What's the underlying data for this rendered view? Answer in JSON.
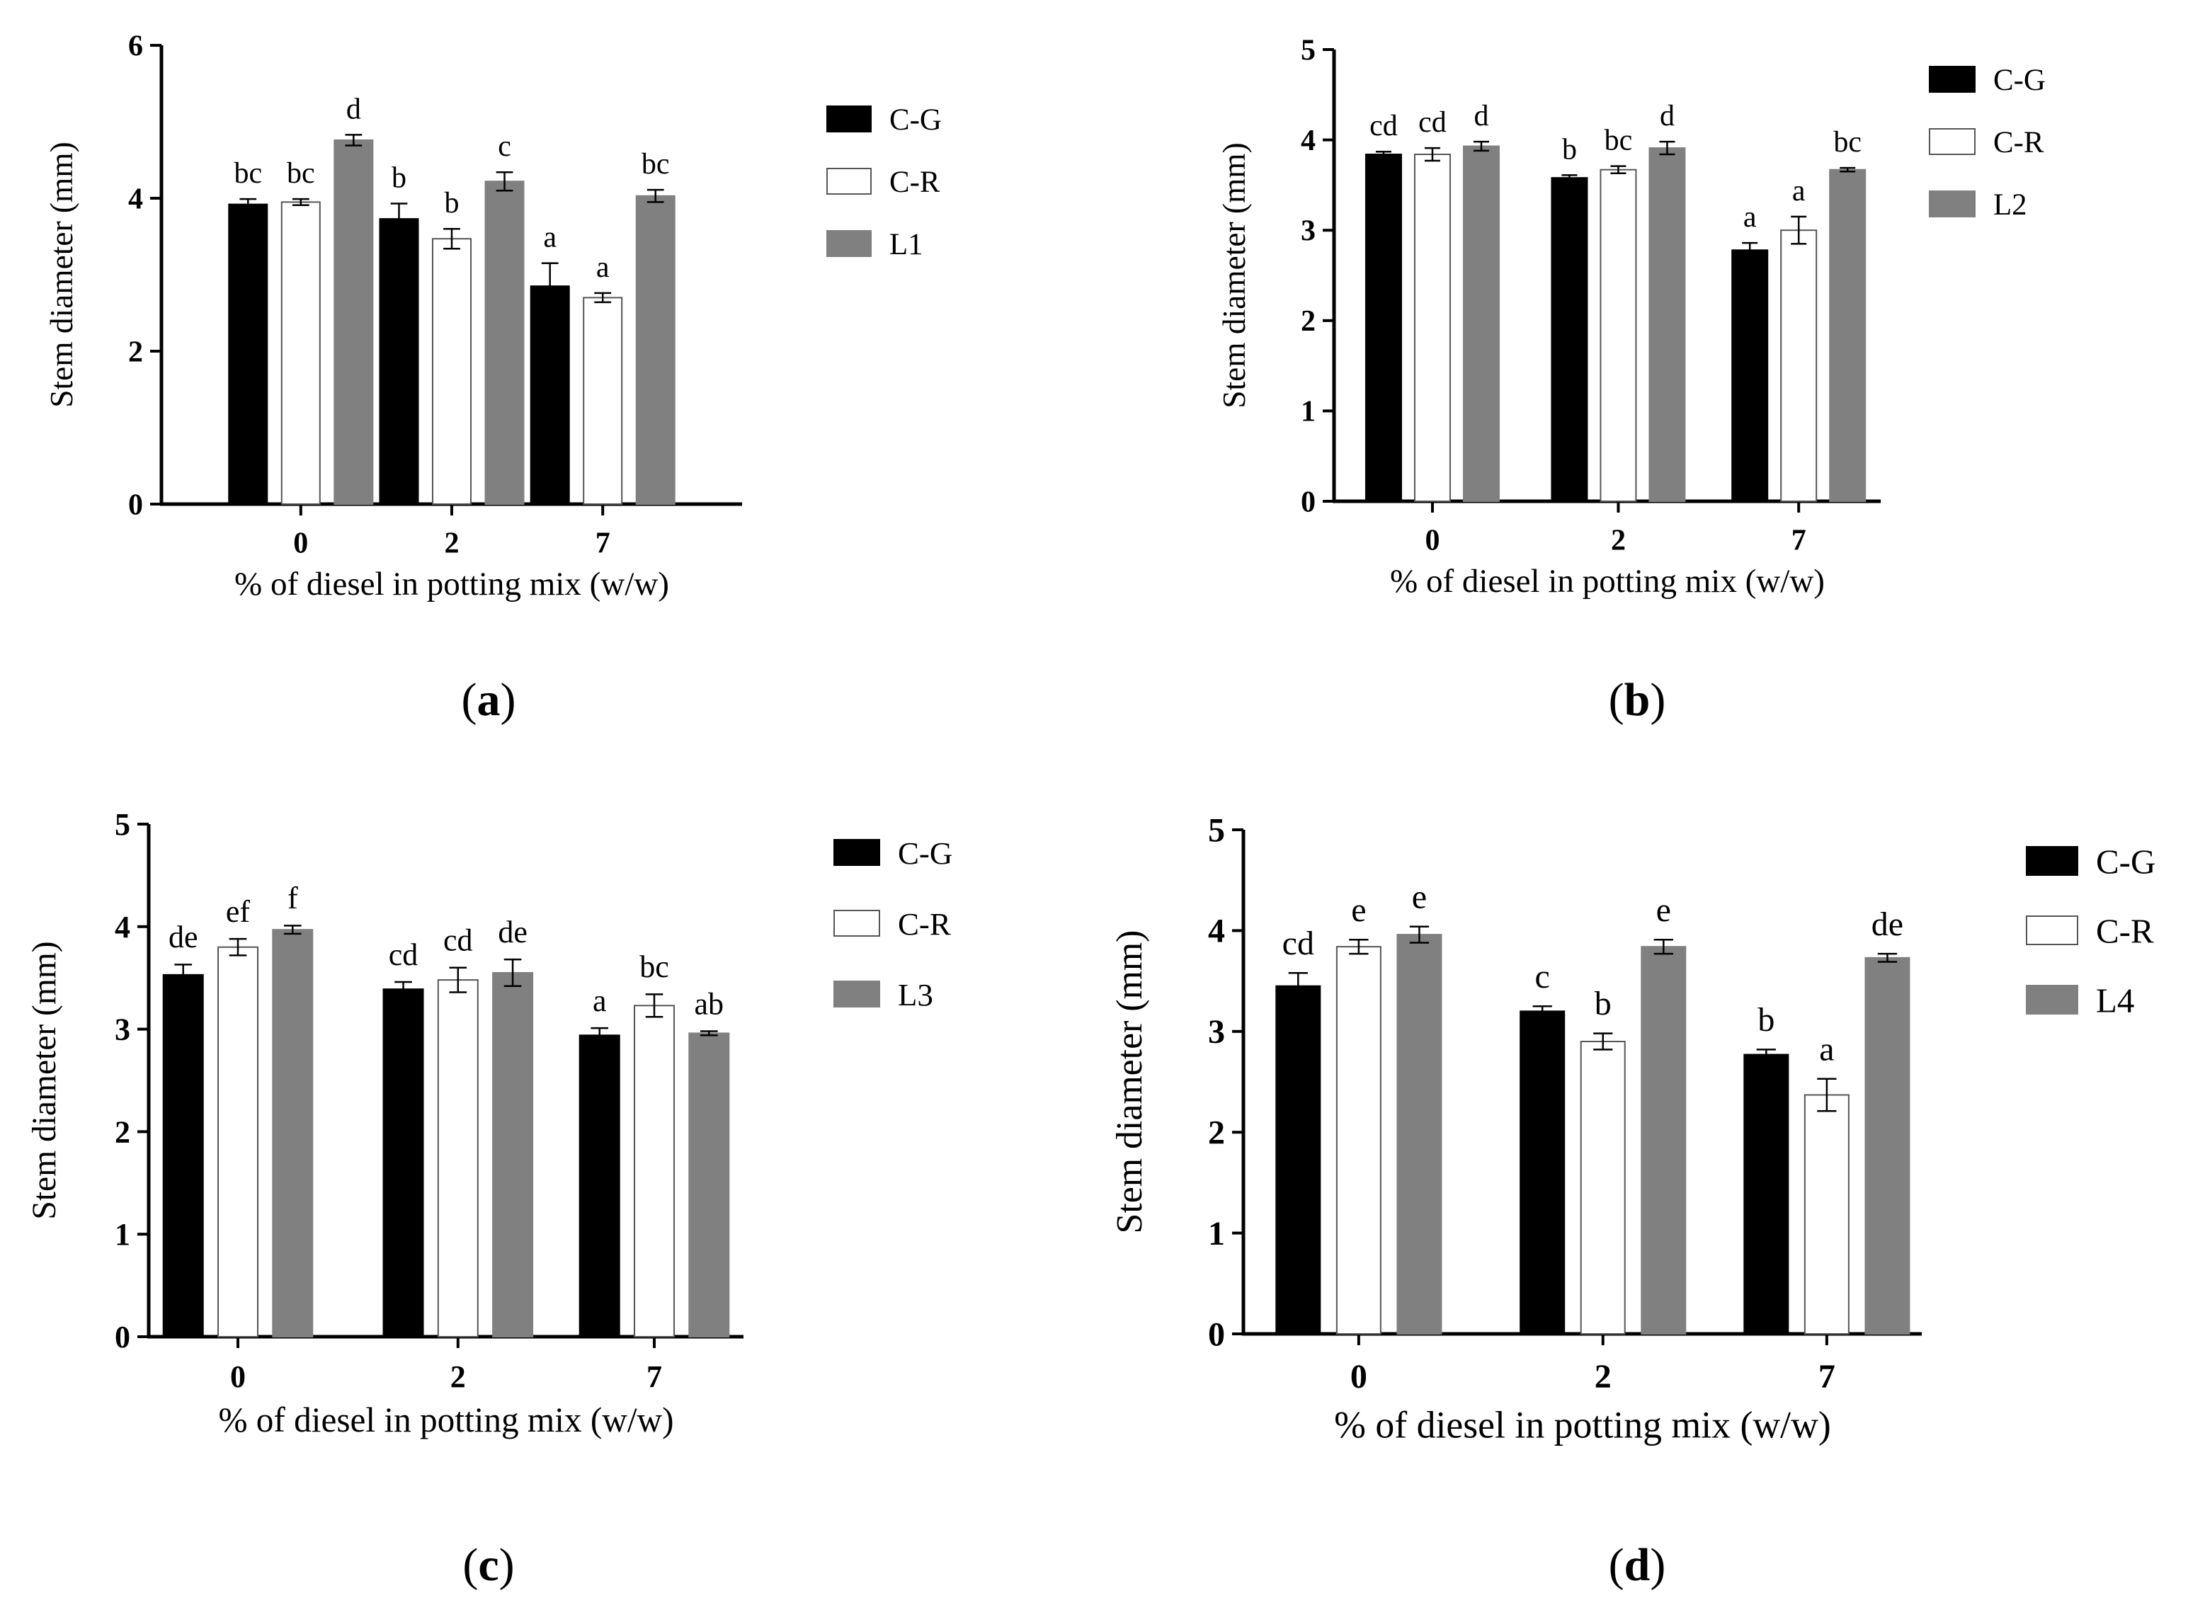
{
  "chart_data": [
    {
      "panel_label": "(a)",
      "type": "bar",
      "ylabel": "Stem diameter (mm)",
      "xlabel": "% of diesel in potting mix (w/w)",
      "categories": [
        "0",
        "2",
        "7"
      ],
      "ylim": [
        0,
        6
      ],
      "yticks": [
        "0",
        "2",
        "4",
        "6"
      ],
      "legend_position": "right",
      "series": [
        {
          "name": "C-G",
          "color": "#000000",
          "values": [
            3.92,
            3.73,
            2.85
          ],
          "errors": [
            0.07,
            0.2,
            0.3
          ],
          "letters": [
            "bc",
            "b",
            "a"
          ]
        },
        {
          "name": "C-R",
          "color": "#ffffff",
          "values": [
            3.95,
            3.47,
            2.7
          ],
          "errors": [
            0.04,
            0.13,
            0.06
          ],
          "letters": [
            "bc",
            "b",
            "a"
          ]
        },
        {
          "name": "L1",
          "color": "#808080",
          "values": [
            4.76,
            4.22,
            4.03
          ],
          "errors": [
            0.07,
            0.12,
            0.08
          ],
          "letters": [
            "d",
            "c",
            "bc"
          ]
        }
      ]
    },
    {
      "panel_label": "(b)",
      "type": "bar",
      "ylabel": "Stem diameter (mm)",
      "xlabel": "% of diesel in potting mix (w/w)",
      "categories": [
        "0",
        "2",
        "7"
      ],
      "ylim": [
        0,
        5
      ],
      "yticks": [
        "0",
        "1",
        "2",
        "3",
        "4",
        "5"
      ],
      "legend_position": "right",
      "series": [
        {
          "name": "C-G",
          "color": "#000000",
          "values": [
            3.84,
            3.58,
            2.78
          ],
          "errors": [
            0.03,
            0.03,
            0.08
          ],
          "letters": [
            "cd",
            "b",
            "a"
          ]
        },
        {
          "name": "C-R",
          "color": "#ffffff",
          "values": [
            3.84,
            3.67,
            3.0
          ],
          "errors": [
            0.07,
            0.04,
            0.15
          ],
          "letters": [
            "cd",
            "bc",
            "a"
          ]
        },
        {
          "name": "L2",
          "color": "#808080",
          "values": [
            3.93,
            3.91,
            3.67
          ],
          "errors": [
            0.05,
            0.07,
            0.02
          ],
          "letters": [
            "d",
            "d",
            "bc"
          ]
        }
      ]
    },
    {
      "panel_label": "(c)",
      "type": "bar",
      "ylabel": "Stem diameter (mm)",
      "xlabel": "% of diesel in potting mix (w/w)",
      "categories": [
        "0",
        "2",
        "7"
      ],
      "ylim": [
        0,
        5
      ],
      "yticks": [
        "0",
        "1",
        "2",
        "3",
        "4",
        "5"
      ],
      "legend_position": "right",
      "series": [
        {
          "name": "C-G",
          "color": "#000000",
          "values": [
            3.53,
            3.39,
            2.94
          ],
          "errors": [
            0.1,
            0.07,
            0.07
          ],
          "letters": [
            "de",
            "cd",
            "a"
          ]
        },
        {
          "name": "C-R",
          "color": "#ffffff",
          "values": [
            3.8,
            3.48,
            3.23
          ],
          "errors": [
            0.08,
            0.12,
            0.11
          ],
          "letters": [
            "ef",
            "cd",
            "bc"
          ]
        },
        {
          "name": "L3",
          "color": "#808080",
          "values": [
            3.97,
            3.55,
            2.96
          ],
          "errors": [
            0.04,
            0.13,
            0.02
          ],
          "letters": [
            "f",
            "de",
            "ab"
          ]
        }
      ]
    },
    {
      "panel_label": "(d)",
      "type": "bar",
      "ylabel": "Stem diameter (mm)",
      "xlabel": "% of diesel in potting mix (w/w)",
      "categories": [
        "0",
        "2",
        "7"
      ],
      "ylim": [
        0,
        5
      ],
      "yticks": [
        "0",
        "1",
        "2",
        "3",
        "4",
        "5"
      ],
      "legend_position": "right",
      "series": [
        {
          "name": "C-G",
          "color": "#000000",
          "values": [
            3.45,
            3.2,
            2.77
          ],
          "errors": [
            0.13,
            0.05,
            0.05
          ],
          "letters": [
            "cd",
            "c",
            "b"
          ]
        },
        {
          "name": "C-R",
          "color": "#ffffff",
          "values": [
            3.84,
            2.9,
            2.37
          ],
          "errors": [
            0.07,
            0.08,
            0.16
          ],
          "letters": [
            "e",
            "b",
            "a"
          ]
        },
        {
          "name": "L4",
          "color": "#808080",
          "values": [
            3.96,
            3.84,
            3.73
          ],
          "errors": [
            0.08,
            0.07,
            0.04
          ],
          "letters": [
            "e",
            "e",
            "de"
          ]
        }
      ]
    }
  ]
}
